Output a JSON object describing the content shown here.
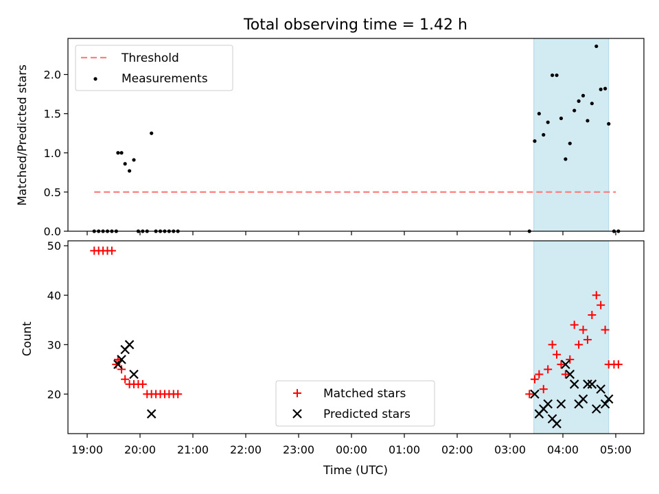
{
  "title": "Total observing time = 1.42 h",
  "colors": {
    "threshold": "#ff7f7f",
    "measurements": "#000000",
    "matched": "#ff0000",
    "predicted": "#000000",
    "span": "#add8e6"
  },
  "chart_data": [
    {
      "type": "scatter",
      "ylabel": "Matched/Predicted stars",
      "ylim": [
        0,
        2.46
      ],
      "yticks": [
        "0.0",
        "0.5",
        "1.0",
        "1.5",
        "2.0"
      ],
      "legend": {
        "placement": "top-left",
        "entries": [
          "Threshold",
          "Measurements"
        ]
      },
      "threshold": {
        "name": "Threshold",
        "y": 0.5,
        "x_start": "19:08",
        "x_end": "05:00"
      },
      "highlight_span": {
        "x_start": "03:27",
        "x_end": "04:52"
      },
      "series": [
        {
          "name": "Measurements",
          "x": [
            "19:08",
            "19:13",
            "19:18",
            "19:23",
            "19:28",
            "19:33",
            "19:35",
            "19:39",
            "19:43",
            "19:48",
            "19:53",
            "19:58",
            "20:03",
            "20:08",
            "20:13",
            "20:18",
            "20:23",
            "20:28",
            "20:33",
            "20:38",
            "20:43",
            "03:22",
            "03:28",
            "03:33",
            "03:38",
            "03:43",
            "03:48",
            "03:53",
            "03:58",
            "04:03",
            "04:08",
            "04:13",
            "04:18",
            "04:23",
            "04:28",
            "04:33",
            "04:38",
            "04:43",
            "04:48",
            "04:52",
            "04:58",
            "05:03"
          ],
          "y": [
            0,
            0,
            0,
            0,
            0,
            0,
            1.0,
            1.0,
            0.86,
            0.77,
            0.91,
            0,
            0,
            0,
            1.25,
            0,
            0,
            0,
            0,
            0,
            0,
            0,
            1.15,
            1.5,
            1.23,
            1.39,
            1.99,
            1.99,
            1.44,
            0.92,
            1.12,
            1.54,
            1.66,
            1.73,
            1.41,
            1.63,
            2.36,
            1.81,
            1.82,
            1.37,
            0,
            0
          ]
        }
      ]
    },
    {
      "type": "scatter",
      "ylabel": "Count",
      "xlabel": "Time (UTC)",
      "ylim": [
        12,
        51
      ],
      "yticks": [
        "20",
        "30",
        "40",
        "50"
      ],
      "xticks": [
        "19:00",
        "20:00",
        "21:00",
        "22:00",
        "23:00",
        "00:00",
        "01:00",
        "02:00",
        "03:00",
        "04:00",
        "05:00"
      ],
      "legend": {
        "placement": "lower-center",
        "entries": [
          "Matched stars",
          "Predicted stars"
        ]
      },
      "highlight_span": {
        "x_start": "03:27",
        "x_end": "04:52"
      },
      "series": [
        {
          "name": "Matched stars",
          "marker": "plus",
          "x": [
            "19:08",
            "19:13",
            "19:18",
            "19:23",
            "19:28",
            "19:33",
            "19:35",
            "19:39",
            "19:43",
            "19:48",
            "19:53",
            "19:58",
            "20:03",
            "20:08",
            "20:13",
            "20:18",
            "20:23",
            "20:28",
            "20:33",
            "20:38",
            "20:43",
            "03:22",
            "03:28",
            "03:33",
            "03:38",
            "03:43",
            "03:48",
            "03:53",
            "03:58",
            "04:03",
            "04:08",
            "04:13",
            "04:18",
            "04:23",
            "04:28",
            "04:33",
            "04:38",
            "04:43",
            "04:48",
            "04:52",
            "04:58",
            "05:03"
          ],
          "y": [
            49,
            49,
            49,
            49,
            49,
            26,
            27,
            25,
            23,
            22,
            22,
            22,
            22,
            20,
            20,
            20,
            20,
            20,
            20,
            20,
            20,
            20,
            23,
            24,
            21,
            25,
            30,
            28,
            26,
            24,
            27,
            34,
            30,
            33,
            31,
            36,
            40,
            38,
            33,
            26,
            26,
            26
          ]
        },
        {
          "name": "Predicted stars",
          "marker": "x",
          "x": [
            "19:35",
            "19:39",
            "19:43",
            "19:48",
            "19:53",
            "20:13",
            "03:28",
            "03:33",
            "03:38",
            "03:43",
            "03:48",
            "03:53",
            "03:58",
            "04:03",
            "04:08",
            "04:13",
            "04:18",
            "04:23",
            "04:28",
            "04:33",
            "04:38",
            "04:43",
            "04:48",
            "04:52"
          ],
          "y": [
            26,
            27,
            29,
            30,
            24,
            16,
            20,
            16,
            17,
            18,
            15,
            14,
            18,
            26,
            24,
            22,
            18,
            19,
            22,
            22,
            17,
            21,
            18,
            19
          ]
        }
      ]
    }
  ]
}
